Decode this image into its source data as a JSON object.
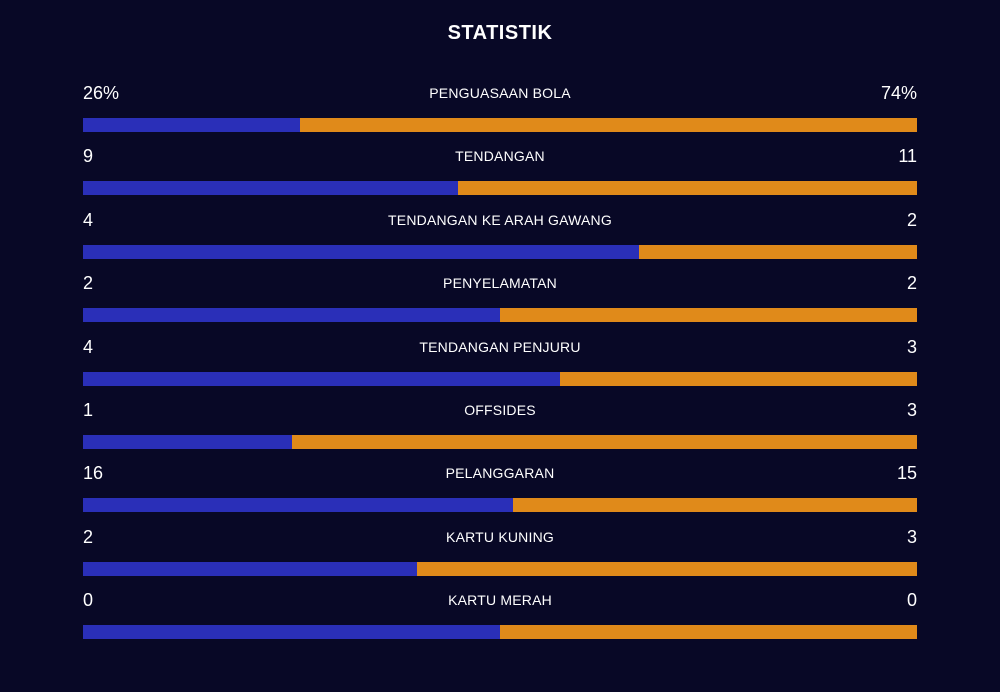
{
  "title": "STATISTIK",
  "colors": {
    "background": "#080826",
    "home": "#2a2fb8",
    "away": "#e08a1a",
    "text": "#ffffff"
  },
  "stats": [
    {
      "label": "PENGUASAAN BOLA",
      "home": "26%",
      "away": "74%",
      "home_share": 0.26
    },
    {
      "label": "TENDANGAN",
      "home": "9",
      "away": "11",
      "home_share": 0.45
    },
    {
      "label": "TENDANGAN KE ARAH GAWANG",
      "home": "4",
      "away": "2",
      "home_share": 0.6667
    },
    {
      "label": "PENYELAMATAN",
      "home": "2",
      "away": "2",
      "home_share": 0.5
    },
    {
      "label": "TENDANGAN PENJURU",
      "home": "4",
      "away": "3",
      "home_share": 0.5714
    },
    {
      "label": "OFFSIDES",
      "home": "1",
      "away": "3",
      "home_share": 0.25
    },
    {
      "label": "PELANGGARAN",
      "home": "16",
      "away": "15",
      "home_share": 0.5161
    },
    {
      "label": "KARTU KUNING",
      "home": "2",
      "away": "3",
      "home_share": 0.4
    },
    {
      "label": "KARTU MERAH",
      "home": "0",
      "away": "0",
      "home_share": 0.5
    }
  ]
}
